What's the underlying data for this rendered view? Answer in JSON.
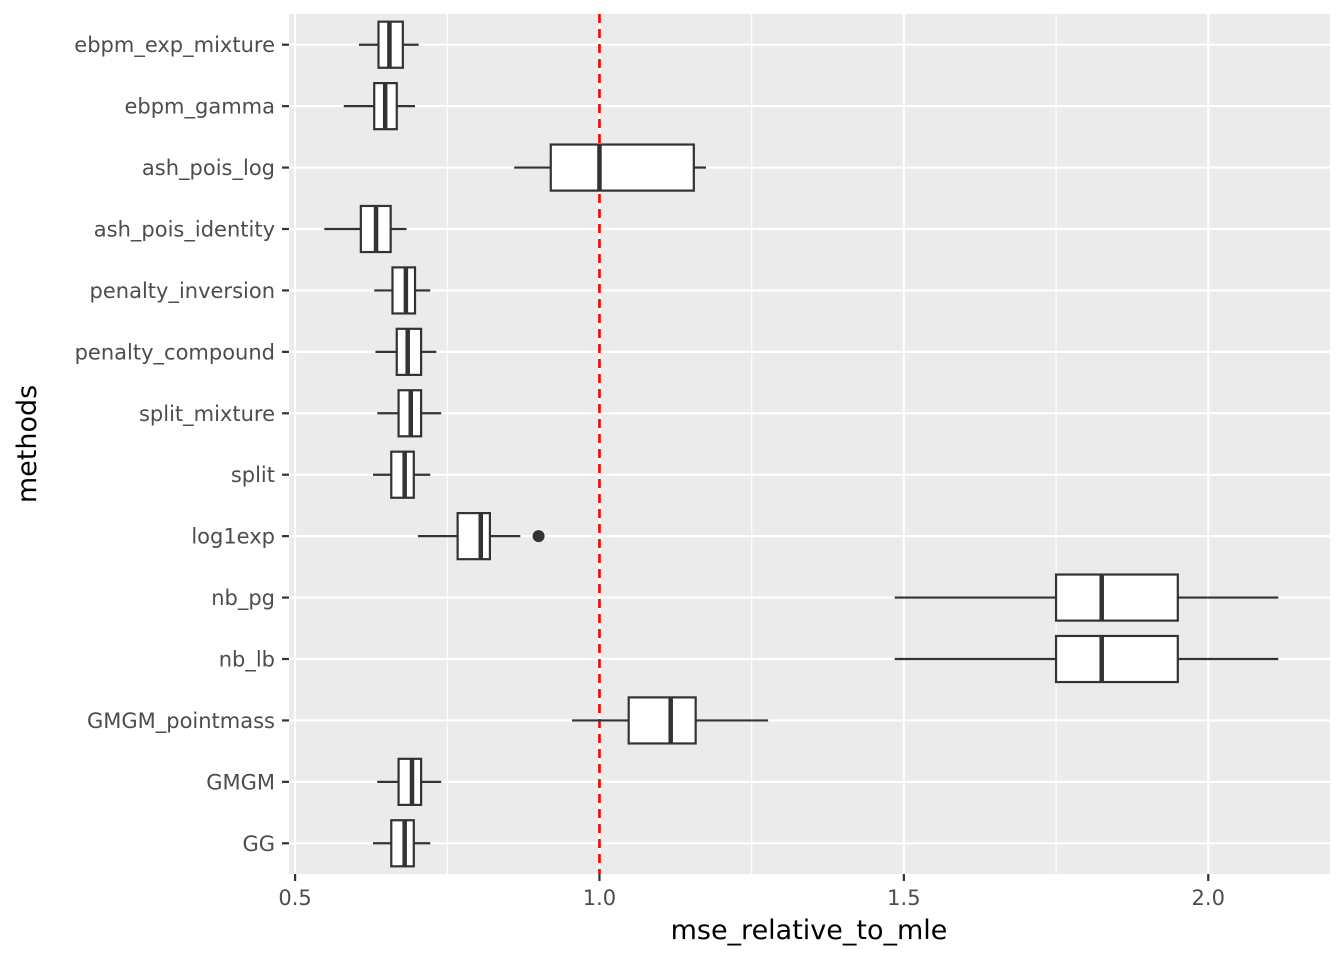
{
  "chart_data": {
    "type": "boxplot",
    "orientation": "horizontal",
    "title": "",
    "xlabel": "mse_relative_to_mle",
    "ylabel": "methods",
    "xlim": [
      0.49,
      2.2
    ],
    "x_ticks": [
      0.5,
      1.0,
      1.5,
      2.0
    ],
    "x_tick_labels": [
      "0.5",
      "1.0",
      "1.5",
      "2.0"
    ],
    "reference_line": {
      "x": 1.0,
      "color": "#ff0000",
      "style": "dashed"
    },
    "colors": {
      "panel_background": "#ebebeb",
      "grid_major": "#ffffff",
      "box_fill": "#ffffff",
      "box_stroke": "#333333",
      "outlier": "#333333"
    },
    "categories": [
      "ebpm_exp_mixture",
      "ebpm_gamma",
      "ash_pois_log",
      "ash_pois_identity",
      "penalty_inversion",
      "penalty_compound",
      "split_mixture",
      "split",
      "log1exp",
      "nb_pg",
      "nb_lb",
      "GMGM_pointmass",
      "GMGM",
      "GG"
    ],
    "boxes": [
      {
        "method": "ebpm_exp_mixture",
        "whisker_low": 0.605,
        "q1": 0.637,
        "median": 0.655,
        "q3": 0.677,
        "whisker_high": 0.703,
        "outliers": []
      },
      {
        "method": "ebpm_gamma",
        "whisker_low": 0.58,
        "q1": 0.63,
        "median": 0.648,
        "q3": 0.667,
        "whisker_high": 0.697,
        "outliers": []
      },
      {
        "method": "ash_pois_log",
        "whisker_low": 0.86,
        "q1": 0.92,
        "median": 1.0,
        "q3": 1.155,
        "whisker_high": 1.175,
        "outliers": []
      },
      {
        "method": "ash_pois_identity",
        "whisker_low": 0.548,
        "q1": 0.608,
        "median": 0.633,
        "q3": 0.657,
        "whisker_high": 0.683,
        "outliers": []
      },
      {
        "method": "penalty_inversion",
        "whisker_low": 0.63,
        "q1": 0.66,
        "median": 0.682,
        "q3": 0.697,
        "whisker_high": 0.722,
        "outliers": []
      },
      {
        "method": "penalty_compound",
        "whisker_low": 0.632,
        "q1": 0.667,
        "median": 0.685,
        "q3": 0.707,
        "whisker_high": 0.732,
        "outliers": []
      },
      {
        "method": "split_mixture",
        "whisker_low": 0.635,
        "q1": 0.67,
        "median": 0.69,
        "q3": 0.707,
        "whisker_high": 0.74,
        "outliers": []
      },
      {
        "method": "split",
        "whisker_low": 0.628,
        "q1": 0.658,
        "median": 0.68,
        "q3": 0.695,
        "whisker_high": 0.722,
        "outliers": []
      },
      {
        "method": "log1exp",
        "whisker_low": 0.702,
        "q1": 0.767,
        "median": 0.805,
        "q3": 0.82,
        "whisker_high": 0.87,
        "outliers": [
          0.9
        ]
      },
      {
        "method": "nb_pg",
        "whisker_low": 1.485,
        "q1": 1.75,
        "median": 1.825,
        "q3": 1.95,
        "whisker_high": 2.115,
        "outliers": []
      },
      {
        "method": "nb_lb",
        "whisker_low": 1.485,
        "q1": 1.75,
        "median": 1.825,
        "q3": 1.95,
        "whisker_high": 2.115,
        "outliers": []
      },
      {
        "method": "GMGM_pointmass",
        "whisker_low": 0.955,
        "q1": 1.048,
        "median": 1.117,
        "q3": 1.158,
        "whisker_high": 1.277,
        "outliers": []
      },
      {
        "method": "GMGM",
        "whisker_low": 0.635,
        "q1": 0.67,
        "median": 0.692,
        "q3": 0.707,
        "whisker_high": 0.74,
        "outliers": []
      },
      {
        "method": "GG",
        "whisker_low": 0.628,
        "q1": 0.658,
        "median": 0.68,
        "q3": 0.695,
        "whisker_high": 0.722,
        "outliers": []
      }
    ]
  }
}
